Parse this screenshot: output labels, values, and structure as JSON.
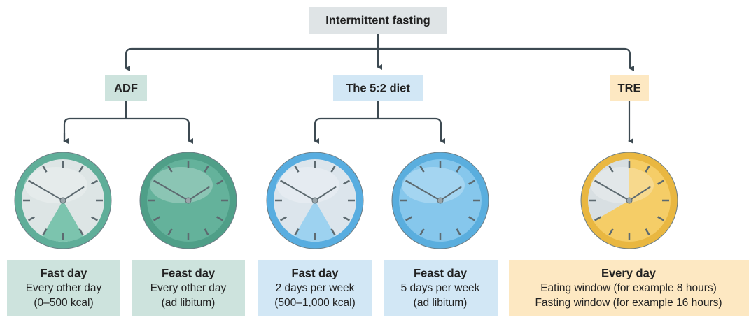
{
  "root": {
    "label": "Intermittent fasting"
  },
  "branches": [
    {
      "label": "ADF",
      "options": [
        {
          "title": "Fast day",
          "lines": [
            "Every other day",
            "(0–500 kcal)"
          ]
        },
        {
          "title": "Feast day",
          "lines": [
            "Every other day",
            "(ad libitum)"
          ]
        }
      ]
    },
    {
      "label": "The 5:2 diet",
      "options": [
        {
          "title": "Fast day",
          "lines": [
            "2 days per week",
            "(500–1,000 kcal)"
          ]
        },
        {
          "title": "Feast day",
          "lines": [
            "5 days per week",
            "(ad libitum)"
          ]
        }
      ]
    },
    {
      "label": "TRE",
      "options": [
        {
          "title": "Every day",
          "lines": [
            "Eating window (for example 8 hours)",
            "Fasting window (for example 16 hours)"
          ]
        }
      ]
    }
  ]
}
